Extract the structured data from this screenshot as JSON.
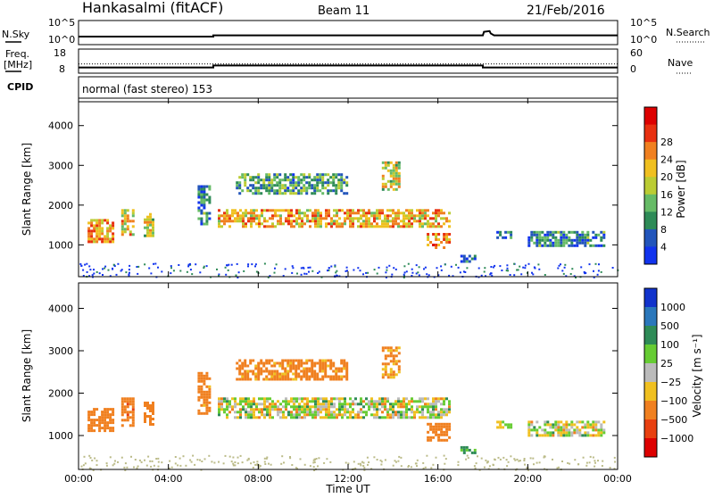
{
  "header": {
    "station": "Hankasalmi (fitACF)",
    "beam": "Beam 11",
    "date": "21/Feb/2016"
  },
  "sky_panel": {
    "left_label": "N.Sky",
    "right_label": "N.Search",
    "left_ticks": [
      "10^5",
      "10^0"
    ],
    "right_ticks": [
      "10^5",
      "10^0"
    ],
    "sky_series": {
      "x_hours": [
        0,
        0.7,
        6.0,
        6.0,
        18.0,
        18.05,
        18.3,
        18.35,
        18.5,
        24
      ],
      "y_log10": [
        1.6,
        1.6,
        1.6,
        1.9,
        1.9,
        2.8,
        3.0,
        2.4,
        1.9,
        1.9
      ]
    }
  },
  "freq_panel": {
    "left_label_1": "Freq.",
    "left_label_2": "[MHz]",
    "right_label": "Nave",
    "left_ticks": [
      "18",
      "8"
    ],
    "right_ticks": [
      "60",
      "0"
    ],
    "freq_series": {
      "x_hours": [
        0,
        0.7,
        6.0,
        6.0,
        18.0,
        18.0,
        24
      ],
      "y_mhz": [
        10.0,
        10.0,
        10.0,
        11.0,
        11.0,
        10.0,
        10.0
      ]
    },
    "nave_level": 23
  },
  "cpid": {
    "label": "CPID",
    "text": "normal (fast stereo) 153"
  },
  "power_panel": {
    "ylabel": "Slant Range [km]",
    "y_ticks": [
      "1000",
      "2000",
      "3000",
      "4000"
    ],
    "colorbar": {
      "label": "Power [dB]",
      "ticks": [
        "4",
        "8",
        "12",
        "16",
        "20",
        "24",
        "28"
      ],
      "colors": [
        "#1133ee",
        "#2255bb",
        "#2e8b57",
        "#66bb66",
        "#bbcc33",
        "#f0c020",
        "#f08020",
        "#e83010",
        "#dd0000"
      ]
    }
  },
  "velocity_panel": {
    "ylabel": "Slant Range [km]",
    "y_ticks": [
      "1000",
      "2000",
      "3000",
      "4000"
    ],
    "colorbar": {
      "label": "Velocity [m s⁻¹]",
      "ticks": [
        "1000",
        "500",
        "100",
        "25",
        "−25",
        "−100",
        "−500",
        "−1000"
      ],
      "colors": [
        "#1133cc",
        "#2a77bb",
        "#2e8b57",
        "#66cc33",
        "#bbbbbb",
        "#f0c020",
        "#f08020",
        "#e84010",
        "#dd0000"
      ]
    }
  },
  "x_axis": {
    "label": "Time UT",
    "ticks": [
      "00:00",
      "04:00",
      "08:00",
      "12:00",
      "16:00",
      "20:00",
      "00:00"
    ]
  },
  "chart_data": {
    "type": "heatmap",
    "title": "Hankasalmi (fitACF)  Beam 11  21/Feb/2016",
    "xlabel": "Time UT",
    "ylabel": "Slant Range [km]",
    "xlim": [
      0,
      24
    ],
    "ylim": [
      200,
      4600
    ],
    "panels": [
      {
        "name": "Power",
        "units": "dB",
        "range": [
          0,
          32
        ],
        "echo_regions": [
          {
            "t0": 0.4,
            "t1": 1.5,
            "r0": 1100,
            "r1": 1650,
            "value": 22
          },
          {
            "t0": 1.9,
            "t1": 2.4,
            "r0": 1250,
            "r1": 1900,
            "value": 18
          },
          {
            "t0": 2.9,
            "t1": 3.3,
            "r0": 1250,
            "r1": 1800,
            "value": 16
          },
          {
            "t0": 5.3,
            "t1": 5.8,
            "r0": 1500,
            "r1": 2500,
            "value": 8
          },
          {
            "t0": 6.2,
            "t1": 16.5,
            "r0": 1450,
            "r1": 1900,
            "value": 20
          },
          {
            "t0": 7.0,
            "t1": 12.0,
            "r0": 2300,
            "r1": 2800,
            "value": 10
          },
          {
            "t0": 13.5,
            "t1": 14.3,
            "r0": 2400,
            "r1": 3100,
            "value": 16
          },
          {
            "t0": 15.5,
            "t1": 16.5,
            "r0": 900,
            "r1": 1300,
            "value": 22
          },
          {
            "t0": 17.0,
            "t1": 17.7,
            "r0": 600,
            "r1": 750,
            "value": 6
          },
          {
            "t0": 18.6,
            "t1": 19.2,
            "r0": 1200,
            "r1": 1350,
            "value": 6
          },
          {
            "t0": 20.0,
            "t1": 23.4,
            "r0": 1000,
            "r1": 1350,
            "value": 8
          }
        ]
      },
      {
        "name": "Velocity",
        "units": "m s-1",
        "range": [
          -1000,
          1000
        ],
        "echo_regions": [
          {
            "t0": 0.4,
            "t1": 1.5,
            "r0": 1100,
            "r1": 1650,
            "value": -300
          },
          {
            "t0": 1.9,
            "t1": 2.4,
            "r0": 1250,
            "r1": 1900,
            "value": -400
          },
          {
            "t0": 2.9,
            "t1": 3.3,
            "r0": 1250,
            "r1": 1800,
            "value": -300
          },
          {
            "t0": 5.3,
            "t1": 5.8,
            "r0": 1500,
            "r1": 2500,
            "value": -200
          },
          {
            "t0": 6.2,
            "t1": 16.5,
            "r0": 1450,
            "r1": 1900,
            "value": 0
          },
          {
            "t0": 7.0,
            "t1": 12.0,
            "r0": 2300,
            "r1": 2800,
            "value": -200
          },
          {
            "t0": 13.5,
            "t1": 14.3,
            "r0": 2400,
            "r1": 3100,
            "value": -150
          },
          {
            "t0": 15.5,
            "t1": 16.5,
            "r0": 900,
            "r1": 1300,
            "value": -250
          },
          {
            "t0": 17.0,
            "t1": 17.7,
            "r0": 600,
            "r1": 750,
            "value": 120
          },
          {
            "t0": 18.6,
            "t1": 19.2,
            "r0": 1200,
            "r1": 1350,
            "value": 0
          },
          {
            "t0": 20.0,
            "t1": 23.4,
            "r0": 1000,
            "r1": 1350,
            "value": 0
          }
        ]
      }
    ]
  }
}
